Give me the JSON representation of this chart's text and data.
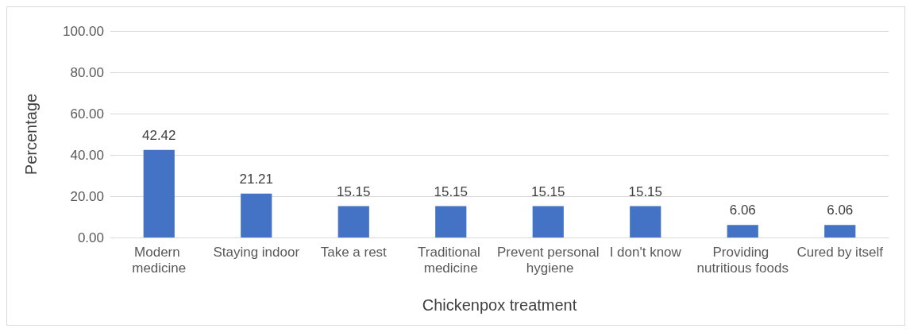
{
  "chart_data": {
    "type": "bar",
    "xlabel": "Chickenpox treatment",
    "ylabel": "Percentage",
    "categories": [
      "Modern medicine",
      "Staying indoor",
      "Take a rest",
      "Traditional medicine",
      "Prevent personal hygiene",
      "I don't know",
      "Providing nutritious foods",
      "Cured by itself"
    ],
    "values": [
      42.42,
      21.21,
      15.15,
      15.15,
      15.15,
      15.15,
      6.06,
      6.06
    ],
    "color": "#4472c4",
    "ylim": [
      0,
      100
    ],
    "yticks": [
      {
        "value": 0,
        "label": "0.00"
      },
      {
        "value": 20,
        "label": "20.00"
      },
      {
        "value": 40,
        "label": "40.00"
      },
      {
        "value": 60,
        "label": "60.00"
      },
      {
        "value": 80,
        "label": "80.00"
      },
      {
        "value": 100,
        "label": "100.00"
      }
    ],
    "grid": "y",
    "data_labels": true
  }
}
